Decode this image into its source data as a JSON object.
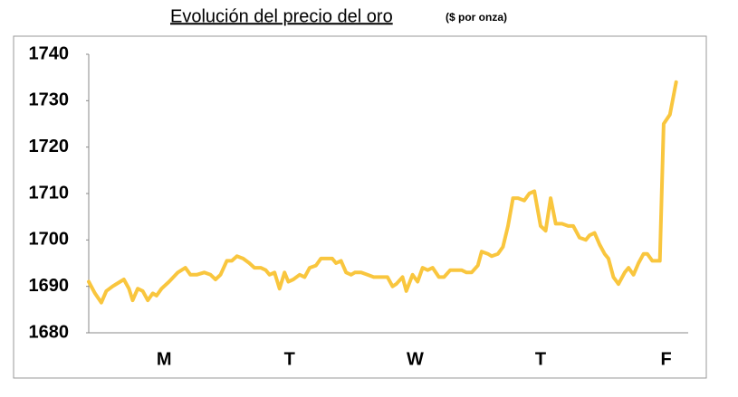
{
  "chart_data": {
    "type": "line",
    "title": "Evolución del precio del oro",
    "subtitle": "($ por onza)",
    "xlim": [
      0,
      4.92
    ],
    "xticks": [
      {
        "value": 0.6,
        "label": "M"
      },
      {
        "value": 1.6,
        "label": "T"
      },
      {
        "value": 2.6,
        "label": "W"
      },
      {
        "value": 3.6,
        "label": "T"
      },
      {
        "value": 4.6,
        "label": "F"
      }
    ],
    "ylim": [
      1680,
      1740
    ],
    "yticks": [
      1680,
      1690,
      1700,
      1710,
      1720,
      1730,
      1740
    ],
    "grid": false,
    "series": [
      {
        "color": "#f9c63e",
        "x": [
          0,
          0.05,
          0.1,
          0.14,
          0.19,
          0.25,
          0.28,
          0.32,
          0.35,
          0.39,
          0.43,
          0.47,
          0.51,
          0.54,
          0.58,
          0.64,
          0.71,
          0.77,
          0.81,
          0.86,
          0.92,
          0.97,
          1.01,
          1.05,
          1.1,
          1.14,
          1.18,
          1.23,
          1.28,
          1.32,
          1.37,
          1.41,
          1.44,
          1.48,
          1.52,
          1.56,
          1.59,
          1.63,
          1.68,
          1.72,
          1.76,
          1.81,
          1.85,
          1.89,
          1.94,
          1.97,
          2.01,
          2.05,
          2.09,
          2.12,
          2.17,
          2.22,
          2.27,
          2.32,
          2.38,
          2.42,
          2.45,
          2.5,
          2.53,
          2.58,
          2.62,
          2.66,
          2.7,
          2.74,
          2.79,
          2.83,
          2.88,
          2.92,
          2.97,
          3.01,
          3.05,
          3.1,
          3.13,
          3.18,
          3.21,
          3.26,
          3.3,
          3.34,
          3.38,
          3.42,
          3.47,
          3.51,
          3.55,
          3.6,
          3.64,
          3.68,
          3.72,
          3.77,
          3.82,
          3.86,
          3.91,
          3.96,
          3.99,
          4.03,
          4.07,
          4.11,
          4.14,
          4.18,
          4.22,
          4.27,
          4.3,
          4.34,
          4.38,
          4.42,
          4.45,
          4.49,
          4.55,
          4.58,
          4.63,
          4.68
        ],
        "values": [
          1691,
          1688.5,
          1686.5,
          1689,
          1690,
          1691,
          1691.5,
          1689.5,
          1687,
          1689.5,
          1689,
          1687,
          1688.5,
          1688,
          1689.5,
          1691,
          1693,
          1694,
          1692.5,
          1692.5,
          1693,
          1692.5,
          1691.5,
          1692.5,
          1695.5,
          1695.5,
          1696.5,
          1696,
          1695,
          1694,
          1694,
          1693.5,
          1692.5,
          1693,
          1689.5,
          1693,
          1691,
          1691.5,
          1692.5,
          1692,
          1694,
          1694.5,
          1696,
          1696,
          1696,
          1695,
          1695.5,
          1693,
          1692.5,
          1693,
          1693,
          1692.5,
          1692,
          1692,
          1692,
          1690,
          1690.5,
          1692,
          1689,
          1692.5,
          1691,
          1694,
          1693.5,
          1694,
          1692,
          1692,
          1693.5,
          1693.5,
          1693.5,
          1693,
          1693,
          1694.5,
          1697.5,
          1697,
          1696.5,
          1697,
          1698.5,
          1703,
          1709,
          1709,
          1708.5,
          1710,
          1710.5,
          1703,
          1702,
          1709,
          1703.5,
          1703.5,
          1703,
          1703,
          1700.5,
          1700,
          1701,
          1701.5,
          1699,
          1697,
          1696,
          1692,
          1690.5,
          1693,
          1694,
          1692.5,
          1695,
          1697,
          1697,
          1695.5,
          1695.5,
          1725,
          1727,
          1734
        ]
      }
    ]
  }
}
